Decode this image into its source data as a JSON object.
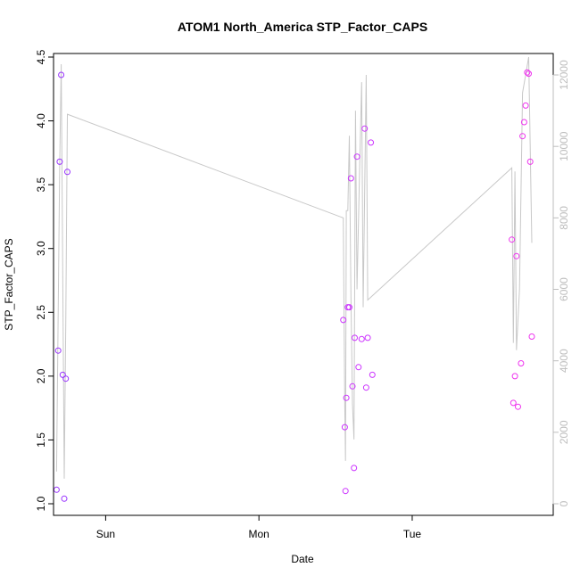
{
  "chart_data": {
    "type": "scatter",
    "title": "ATOM1 North_America STP_Factor_CAPS",
    "xlabel": "Date",
    "ylabel": "STP_Factor_CAPS",
    "x_ticks": [
      "Sun",
      "Mon",
      "Tue"
    ],
    "x_tick_days": [
      1,
      2,
      3
    ],
    "xlim": [
      0.66,
      3.92
    ],
    "ylim": [
      1.0,
      4.5
    ],
    "y_ticks": [
      1.0,
      1.5,
      2.0,
      2.5,
      3.0,
      3.5,
      4.0,
      4.5
    ],
    "y_tick_labels": [
      "1.0",
      "1.5",
      "2.0",
      "2.5",
      "3.0",
      "3.5",
      "4.0",
      "4.5"
    ],
    "y2lim": [
      0,
      12500
    ],
    "y2_ticks": [
      0,
      2000,
      4000,
      6000,
      8000,
      10000,
      12000
    ],
    "y2_tick_labels": [
      "0",
      "2000",
      "4000",
      "6000",
      "8000",
      "10000",
      "12000"
    ],
    "points": [
      {
        "x": 0.68,
        "y": 1.11,
        "color": "#9933ff"
      },
      {
        "x": 0.69,
        "y": 2.2,
        "color": "#9933ff"
      },
      {
        "x": 0.7,
        "y": 3.68,
        "color": "#9933ff"
      },
      {
        "x": 0.71,
        "y": 4.36,
        "color": "#9933ff"
      },
      {
        "x": 0.72,
        "y": 2.01,
        "color": "#9933ff"
      },
      {
        "x": 0.73,
        "y": 1.04,
        "color": "#9933ff"
      },
      {
        "x": 0.74,
        "y": 1.98,
        "color": "#9933ff"
      },
      {
        "x": 0.75,
        "y": 3.6,
        "color": "#9933ff"
      },
      {
        "x": 2.55,
        "y": 2.44,
        "color": "#cc33ff"
      },
      {
        "x": 2.56,
        "y": 1.6,
        "color": "#cc33ff"
      },
      {
        "x": 2.565,
        "y": 1.1,
        "color": "#cc33ff"
      },
      {
        "x": 2.57,
        "y": 1.83,
        "color": "#cc33ff"
      },
      {
        "x": 2.58,
        "y": 2.54,
        "color": "#cc33ff"
      },
      {
        "x": 2.59,
        "y": 2.54,
        "color": "#cc33ff"
      },
      {
        "x": 2.6,
        "y": 3.55,
        "color": "#cc33ff"
      },
      {
        "x": 2.61,
        "y": 1.92,
        "color": "#cc33ff"
      },
      {
        "x": 2.62,
        "y": 1.28,
        "color": "#cc33ff"
      },
      {
        "x": 2.625,
        "y": 2.3,
        "color": "#cc33ff"
      },
      {
        "x": 2.64,
        "y": 3.72,
        "color": "#cc33ff"
      },
      {
        "x": 2.65,
        "y": 2.07,
        "color": "#cc33ff"
      },
      {
        "x": 2.67,
        "y": 2.29,
        "color": "#cc33ff"
      },
      {
        "x": 2.69,
        "y": 3.94,
        "color": "#cc33ff"
      },
      {
        "x": 2.7,
        "y": 1.91,
        "color": "#cc33ff"
      },
      {
        "x": 2.71,
        "y": 2.3,
        "color": "#cc33ff"
      },
      {
        "x": 2.73,
        "y": 3.83,
        "color": "#cc33ff"
      },
      {
        "x": 2.74,
        "y": 2.01,
        "color": "#cc33ff"
      },
      {
        "x": 3.65,
        "y": 3.07,
        "color": "#ee33ee"
      },
      {
        "x": 3.66,
        "y": 1.79,
        "color": "#ee33ee"
      },
      {
        "x": 3.67,
        "y": 2.0,
        "color": "#ee33ee"
      },
      {
        "x": 3.68,
        "y": 2.94,
        "color": "#ee33ee"
      },
      {
        "x": 3.69,
        "y": 1.76,
        "color": "#ee33ee"
      },
      {
        "x": 3.71,
        "y": 2.1,
        "color": "#ee33ee"
      },
      {
        "x": 3.72,
        "y": 3.88,
        "color": "#ee33ee"
      },
      {
        "x": 3.73,
        "y": 3.99,
        "color": "#ee33ee"
      },
      {
        "x": 3.74,
        "y": 4.12,
        "color": "#ee33ee"
      },
      {
        "x": 3.75,
        "y": 4.38,
        "color": "#ee33ee"
      },
      {
        "x": 3.76,
        "y": 4.37,
        "color": "#ee33ee"
      },
      {
        "x": 3.77,
        "y": 3.68,
        "color": "#ee33ee"
      },
      {
        "x": 3.78,
        "y": 2.31,
        "color": "#ee33ee"
      }
    ],
    "line_color": "#c8c8c8",
    "line": [
      {
        "x": 0.68,
        "y": 900
      },
      {
        "x": 0.7,
        "y": 9500
      },
      {
        "x": 0.71,
        "y": 12300
      },
      {
        "x": 0.73,
        "y": 700
      },
      {
        "x": 0.74,
        "y": 5000
      },
      {
        "x": 0.75,
        "y": 10900
      },
      {
        "x": 2.55,
        "y": 8000
      },
      {
        "x": 2.56,
        "y": 2700
      },
      {
        "x": 2.565,
        "y": 1200
      },
      {
        "x": 2.57,
        "y": 8200
      },
      {
        "x": 2.58,
        "y": 8200
      },
      {
        "x": 2.59,
        "y": 10300
      },
      {
        "x": 2.6,
        "y": 5800
      },
      {
        "x": 2.61,
        "y": 2800
      },
      {
        "x": 2.62,
        "y": 1800
      },
      {
        "x": 2.63,
        "y": 11000
      },
      {
        "x": 2.64,
        "y": 6000
      },
      {
        "x": 2.655,
        "y": 9000
      },
      {
        "x": 2.67,
        "y": 11800
      },
      {
        "x": 2.68,
        "y": 5500
      },
      {
        "x": 2.7,
        "y": 12000
      },
      {
        "x": 2.71,
        "y": 5700
      },
      {
        "x": 3.65,
        "y": 9400
      },
      {
        "x": 3.66,
        "y": 4500
      },
      {
        "x": 3.67,
        "y": 9300
      },
      {
        "x": 3.68,
        "y": 4300
      },
      {
        "x": 3.7,
        "y": 6000
      },
      {
        "x": 3.72,
        "y": 11500
      },
      {
        "x": 3.74,
        "y": 12000
      },
      {
        "x": 3.76,
        "y": 12500
      },
      {
        "x": 3.78,
        "y": 7300
      }
    ]
  }
}
